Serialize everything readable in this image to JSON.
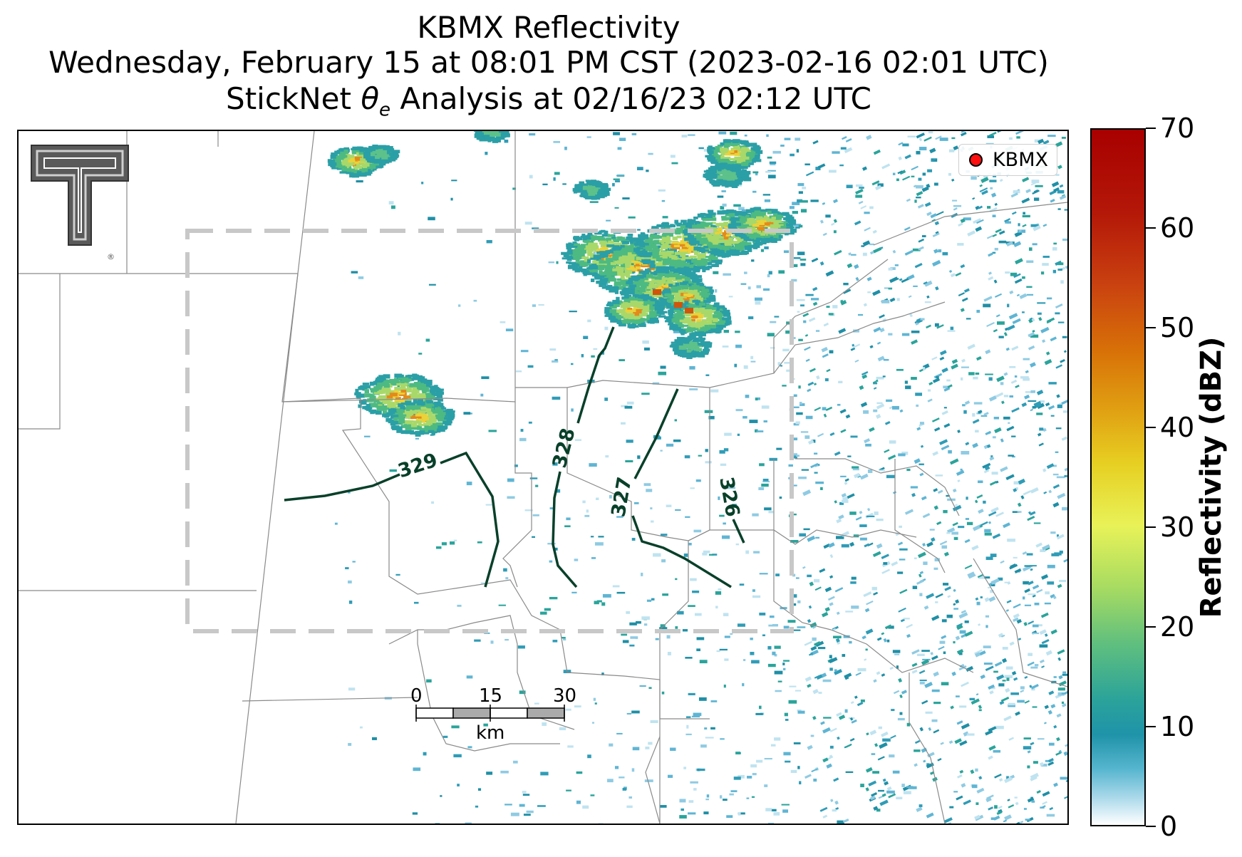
{
  "title": {
    "line1": "KBMX Reflectivity",
    "line2": "Wednesday, February 15 at 08:01 PM CST (2023-02-16 02:01 UTC)",
    "line3_prefix": "StickNet ",
    "line3_symbol": "θ",
    "line3_subscript": "e",
    "line3_suffix": " Analysis at 02/16/23 02:12 UTC"
  },
  "legend": {
    "label": "KBMX",
    "marker_color": "#ff1010"
  },
  "colorbar": {
    "label": "Reflectivity (dBZ)",
    "ticks": [
      "0",
      "10",
      "20",
      "30",
      "40",
      "50",
      "60",
      "70"
    ],
    "range": [
      0,
      70
    ]
  },
  "contours": [
    {
      "label": "329",
      "value": 329
    },
    {
      "label": "328",
      "value": 328
    },
    {
      "label": "327",
      "value": 327
    },
    {
      "label": "326",
      "value": 326
    }
  ],
  "scalebar": {
    "ticks": [
      "0",
      "15",
      "30"
    ],
    "unit": "km"
  },
  "colors": {
    "contour": "#08402a",
    "analysis_box": "#c8c8c8",
    "county_lines": "#8a8a8a"
  },
  "logo": {
    "name": "texas-tech-double-t-logo",
    "mark": "®"
  }
}
